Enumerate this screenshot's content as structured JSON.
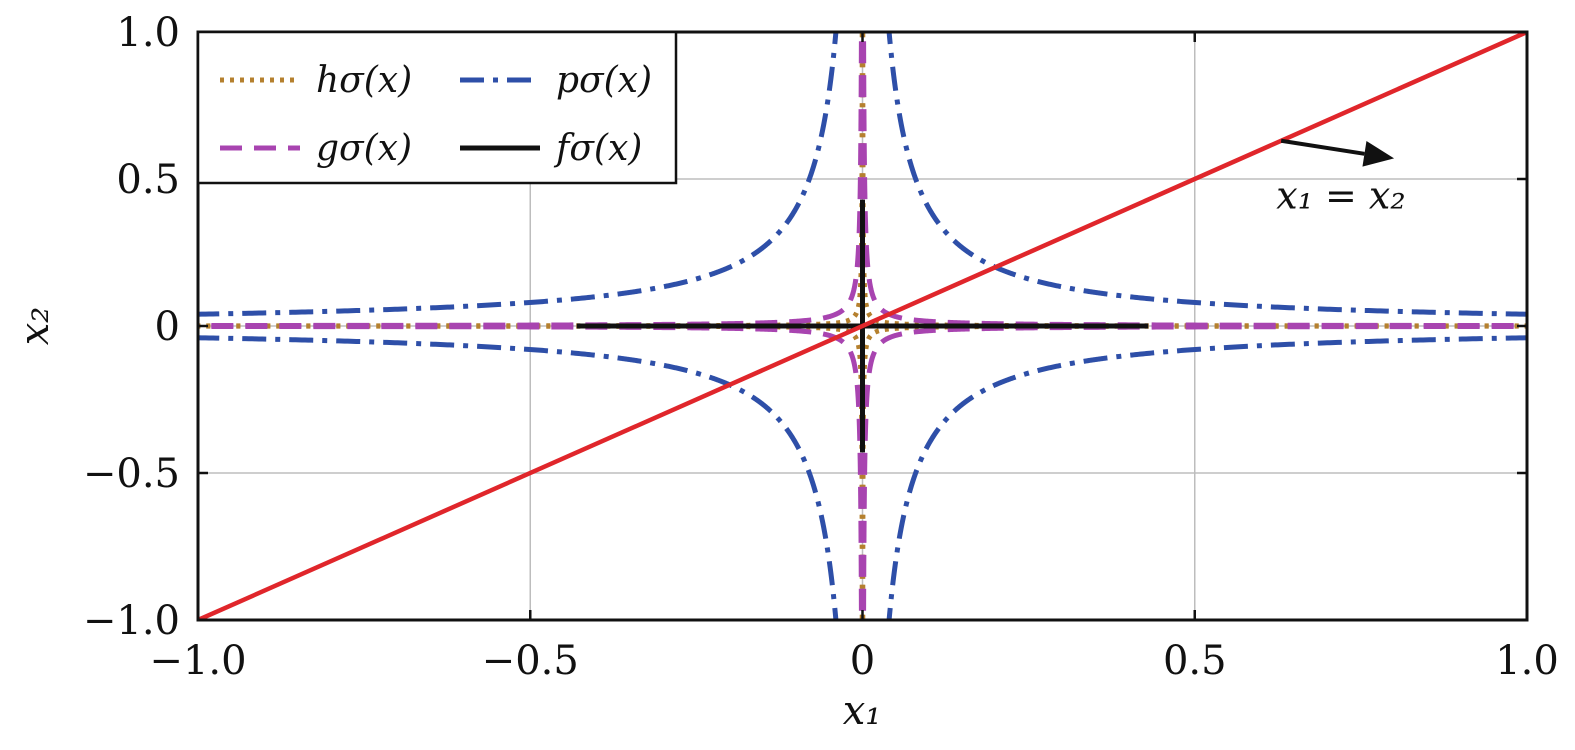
{
  "chart_data": {
    "type": "line",
    "xlabel": "x₁",
    "ylabel": "x₂",
    "xlim": [
      -1.0,
      1.0
    ],
    "ylim": [
      -1.0,
      1.0
    ],
    "xticks": [
      -1.0,
      -0.5,
      0,
      0.5,
      1.0
    ],
    "xtick_labels": [
      "−1.0",
      "−0.5",
      "0",
      "0.5",
      "1.0"
    ],
    "yticks": [
      -1.0,
      -0.5,
      0,
      0.5,
      1.0
    ],
    "ytick_labels": [
      "−1.0",
      "−0.5",
      "0",
      "0.5",
      "1.0"
    ],
    "grid": true,
    "legend_position": "top-left",
    "series": [
      {
        "name": "hσ(x)",
        "color": "#b5802e",
        "style": "dotted",
        "kind": "hyperbola",
        "c": 0.0004,
        "x_extent": 1.0
      },
      {
        "name": "pσ(x)",
        "color": "#2e4fa8",
        "style": "dashdot",
        "kind": "hyperbola",
        "c": 0.04,
        "x_extent": 1.0
      },
      {
        "name": "gσ(x)",
        "color": "#a844b0",
        "style": "dashed",
        "kind": "hyperbola",
        "c": 0.0016,
        "x_extent": 1.0
      },
      {
        "name": "fσ(x)",
        "color": "#111111",
        "style": "solid",
        "kind": "cross",
        "arm": 0.43
      }
    ],
    "reference_line": {
      "color": "#e0262b",
      "x": [
        -1.0,
        1.0
      ],
      "y": [
        -1.0,
        1.0
      ]
    },
    "annotation": {
      "text": "x₁ = x₂",
      "arrow_from": [
        0.63,
        0.63
      ],
      "arrow_to": [
        0.8,
        0.57
      ],
      "text_at": [
        0.72,
        0.4
      ]
    }
  }
}
